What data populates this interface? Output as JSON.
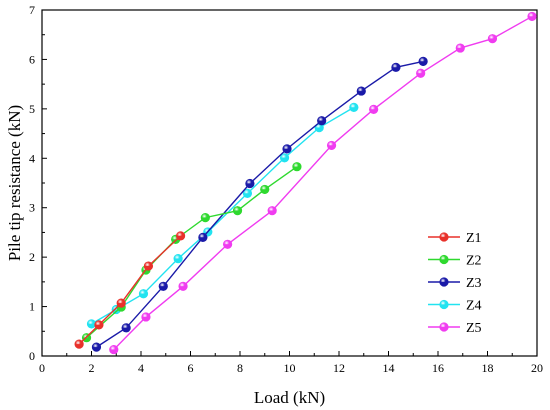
{
  "chart_data": {
    "type": "line",
    "title": "",
    "xlabel": "Load (kN)",
    "ylabel": "Pile tip resistance (kN)",
    "xlim": [
      0,
      20
    ],
    "ylim": [
      0,
      7
    ],
    "xticks": [
      0,
      2,
      4,
      6,
      8,
      10,
      12,
      14,
      16,
      18,
      20
    ],
    "yticks": [
      0,
      1,
      2,
      3,
      4,
      5,
      6,
      7
    ],
    "grid": false,
    "legend_position": "bottom-right",
    "series": [
      {
        "name": "Z1",
        "color": "#e8312a",
        "x": [
          1.5,
          2.3,
          3.2,
          4.3,
          5.6
        ],
        "y": [
          0.24,
          0.63,
          1.07,
          1.82,
          2.43
        ]
      },
      {
        "name": "Z2",
        "color": "#2fd92f",
        "x": [
          1.8,
          3.2,
          4.2,
          5.4,
          6.6,
          7.9,
          9.0,
          10.3
        ],
        "y": [
          0.37,
          0.99,
          1.74,
          2.36,
          2.8,
          2.94,
          3.37,
          3.83
        ]
      },
      {
        "name": "Z3",
        "color": "#1a1aa8",
        "x": [
          2.2,
          3.4,
          4.9,
          6.5,
          8.4,
          9.9,
          11.3,
          12.9,
          14.3,
          15.4
        ],
        "y": [
          0.18,
          0.57,
          1.41,
          2.4,
          3.49,
          4.19,
          4.76,
          5.36,
          5.84,
          5.96
        ]
      },
      {
        "name": "Z4",
        "color": "#22e3f0",
        "x": [
          2.0,
          3.0,
          4.1,
          5.5,
          6.7,
          8.3,
          9.8,
          11.2,
          12.6
        ],
        "y": [
          0.65,
          0.94,
          1.26,
          1.97,
          2.51,
          3.29,
          4.01,
          4.62,
          5.03
        ]
      },
      {
        "name": "Z5",
        "color": "#f03cf0",
        "x": [
          2.9,
          4.2,
          5.7,
          7.5,
          9.3,
          11.7,
          13.4,
          15.3,
          16.9,
          18.2,
          19.8
        ],
        "y": [
          0.13,
          0.79,
          1.41,
          2.26,
          2.94,
          4.26,
          4.99,
          5.72,
          6.23,
          6.42,
          6.87
        ]
      }
    ]
  }
}
